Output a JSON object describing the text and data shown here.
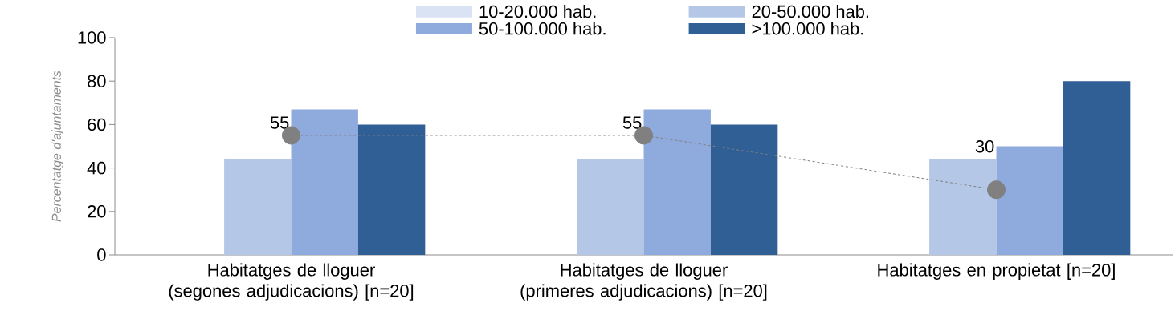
{
  "chart_data": {
    "type": "bar",
    "ylabel": "Percentatge d'ajuntaments",
    "categories": [
      "Habitatges de lloguer (segones adjudicacions) [n=20]",
      "Habitatges de lloguer (primeres adjudicacions) [n=20]",
      "Habitatges en propietat [n=20]"
    ],
    "series": [
      {
        "name": "10-20.000 hab.",
        "color": "#dae3f3",
        "values": [
          0,
          0,
          0
        ]
      },
      {
        "name": "20-50.000 hab.",
        "color": "#b4c7e7",
        "values": [
          44,
          44,
          44
        ]
      },
      {
        "name": "50-100.000 hab.",
        "color": "#8faadc",
        "values": [
          67,
          67,
          50
        ]
      },
      {
        "name": ">100.000 hab.",
        "color": "#2f5f94",
        "values": [
          60,
          60,
          80
        ]
      },
      {
        "type": "line",
        "color": "#808080",
        "values": [
          55,
          55,
          30
        ],
        "value_labels": [
          "55",
          "55",
          "30"
        ]
      }
    ],
    "ylim": [
      0,
      100
    ],
    "yticks": [
      0,
      20,
      40,
      60,
      80,
      100
    ],
    "legend": "top",
    "marker": "circle",
    "line_style": "dashed",
    "grid": false
  }
}
